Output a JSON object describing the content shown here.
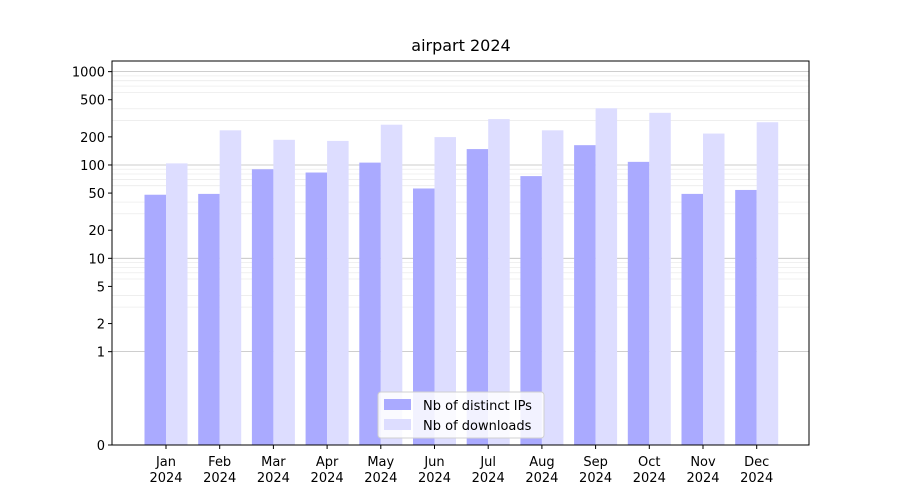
{
  "chart_data": {
    "type": "bar",
    "title": "airpart 2024",
    "xlabel": "",
    "ylabel": "",
    "yscale": "symlog",
    "ylim": [
      0,
      1300
    ],
    "yticks": [
      0,
      1,
      2,
      5,
      10,
      20,
      50,
      100,
      200,
      500,
      1000
    ],
    "grid": true,
    "legend_position": "lower-center",
    "categories": [
      "Jan\n2024",
      "Feb\n2024",
      "Mar\n2024",
      "Apr\n2024",
      "May\n2024",
      "Jun\n2024",
      "Jul\n2024",
      "Aug\n2024",
      "Sep\n2024",
      "Oct\n2024",
      "Nov\n2024",
      "Dec\n2024"
    ],
    "series": [
      {
        "name": "Nb of distinct IPs",
        "color": "#aaaaff",
        "values": [
          48,
          49,
          90,
          83,
          106,
          56,
          148,
          76,
          163,
          108,
          49,
          54
        ]
      },
      {
        "name": "Nb of downloads",
        "color": "#ddddff",
        "values": [
          104,
          235,
          186,
          181,
          270,
          199,
          310,
          235,
          405,
          362,
          217,
          287
        ]
      }
    ]
  }
}
